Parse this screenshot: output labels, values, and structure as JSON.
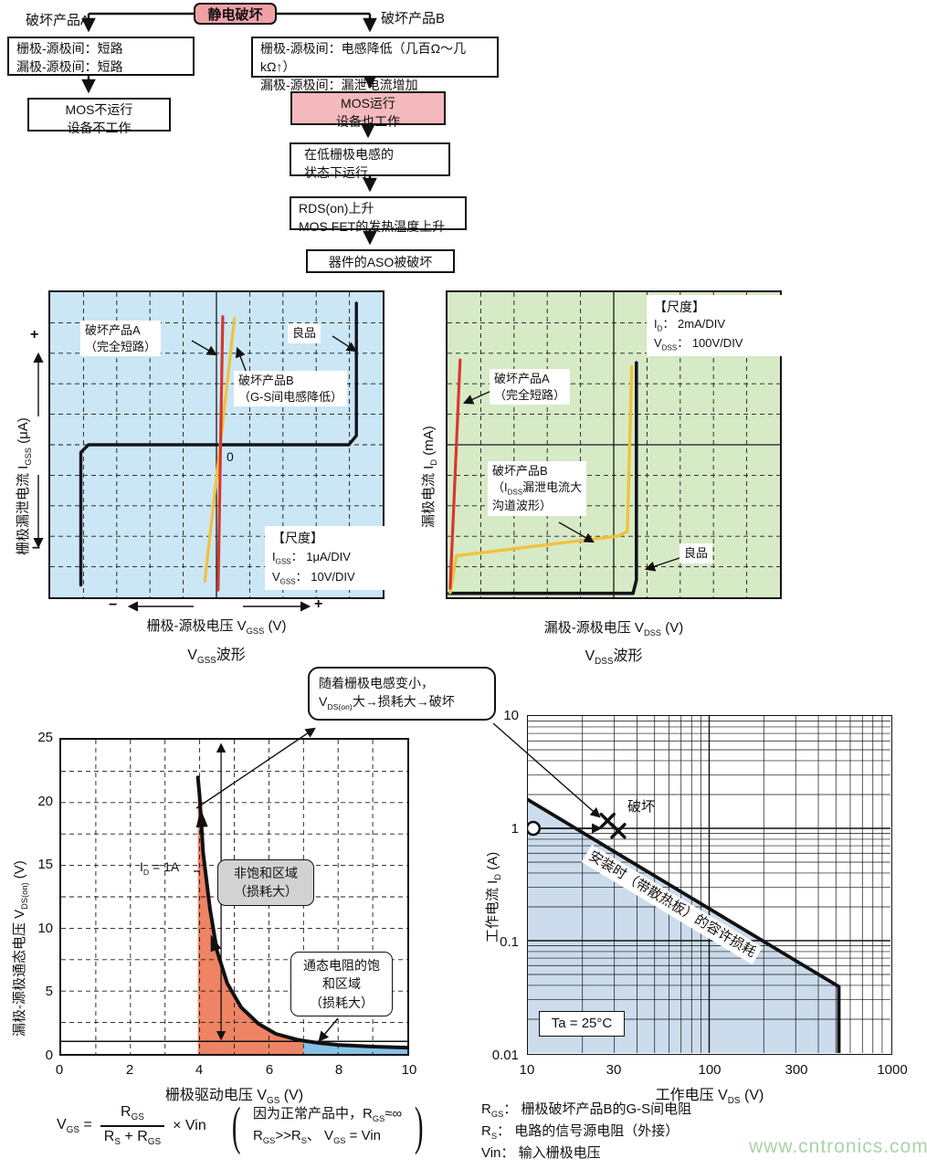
{
  "flowchart": {
    "root": "静电破坏",
    "branch_a_label": "破坏产品A",
    "branch_b_label": "破坏产品B",
    "a1": [
      "栅极-源极间：短路",
      "漏极-源极间：短路"
    ],
    "b1": [
      "栅极-源极间：电感降低（几百Ω～几kΩ↑）",
      "漏极-源极间：漏泄电流增加"
    ],
    "a2": [
      "MOS不运行",
      "设备不工作"
    ],
    "b2": [
      "MOS运行",
      "设备也工作"
    ],
    "b3": [
      "在低栅极电感的",
      "状态下运行"
    ],
    "b4": [
      "RDS(on)上升",
      "MOS FET的发热温度上升"
    ],
    "b5": "器件的ASO被破坏"
  },
  "vgss_chart": {
    "y_label_rich": "栅极漏泄电流  I~GSS~ (μA)",
    "y_plus": "+",
    "y_minus": "−",
    "zero": "0",
    "label_a": [
      "破坏产品A",
      "（完全短路）"
    ],
    "label_b": [
      "破坏产品B",
      "（G-S间电感降低）"
    ],
    "label_good": "良品",
    "scale_title": "【尺度】",
    "scale_l1_rich": "I~GSS~： 1μA/DIV",
    "scale_l2_rich": "V~GSS~： 10V/DIV",
    "x_minus": "−",
    "x_plus": "+",
    "x_label_rich": "栅极-源极电压  V~GSS~ (V)",
    "caption_rich": "V~GSS~波形"
  },
  "vdss_chart": {
    "y_label_rich": "漏极电流  I~D~ (mA)",
    "label_a": [
      "破坏产品A",
      "（完全短路）"
    ],
    "label_b_rich": [
      "破坏产品B",
      "（I~DSS~漏泄电流大",
      "沟道波形）"
    ],
    "label_good": "良品",
    "scale_title": "【尺度】",
    "scale_l1_rich": "I~D~： 2mA/DIV",
    "scale_l2_rich": "V~DSS~： 100V/DIV",
    "x_label_rich": "漏极-源极电压  V~DSS~ (V)",
    "caption_rich": "V~DSS~波形"
  },
  "vdson_chart": {
    "y_label_rich": "漏极-源极通态电压  V~DS(on)~ (V)",
    "x_label_rich": "栅极驱动电压  V~GS~ (V)",
    "y_ticks": [
      "25",
      "20",
      "15",
      "10",
      "5",
      "0"
    ],
    "x_ticks": [
      "0",
      "2",
      "4",
      "6",
      "8",
      "10"
    ],
    "id_label_rich": "I~D~ = 1A",
    "region1": [
      "非饱和区域",
      "（损耗大）"
    ],
    "region2": [
      "通态电阻的饱",
      "和区域",
      "（损耗大）"
    ],
    "callout_l1_rich": "随着栅极电感变小，",
    "callout_l2_rich": "V~DS(on)~大→损耗大→破坏"
  },
  "aso_chart": {
    "y_label_rich": "工作电流  I~D~ (A)",
    "x_label_rich": "工作电压  V~DS~ (V)",
    "y_ticks": [
      "10",
      "1",
      "0.1",
      "0.01"
    ],
    "x_ticks": [
      "10",
      "30",
      "100",
      "300",
      "1000"
    ],
    "destroy_label": "破坏",
    "diag_label": "安装时（带散热板）的容许损耗",
    "ta_label": "Ta = 25°C"
  },
  "formula": {
    "lhs_rich": "V~GS~ =",
    "num_rich": "R~GS~",
    "den_rich": "R~S~ + R~GS~",
    "rhs_rich": "× Vin",
    "paren_open": "(",
    "paren_close": ")",
    "note1_rich": "因为正常产品中，R~GS~≈∞",
    "note2_rich": "R~GS~>>R~S~、 V~GS~ = Vin"
  },
  "legend": {
    "l1_rich": "R~GS~： 栅极破坏产品B的G-S间电阻",
    "l2_rich": "R~S~： 电路的信号源电阻（外接）",
    "l3_rich": "Vin： 输入栅极电压"
  },
  "watermark": "www.cntronics.com",
  "colors": {
    "chart1_bg": "#cbe6f5",
    "chart2_bg": "#d6eac6",
    "trace_red": "#d6392e",
    "trace_yellow": "#f0c23c",
    "trace_black": "#14141e",
    "orange_fill": "#ee8464",
    "blue_fill": "#85c2e6",
    "aso_fill": "#ccdcec",
    "pink_dark": "#efa1a6",
    "pink_light": "#f4b9bc",
    "gray_box": "#d2d2d2",
    "watermark_green": "#a9d3a9"
  },
  "chart_data": [
    {
      "id": "vgss",
      "type": "line",
      "title": "VGSS波形",
      "xlabel": "栅极-源极电压 VGSS (V)",
      "ylabel": "栅极漏泄电流 IGSS (μA)",
      "x_scale": "10V/DIV",
      "y_scale": "1μA/DIV",
      "x_range_div": [
        -5,
        5
      ],
      "y_range_div": [
        -5,
        5
      ],
      "grid": "dashed 10x10 divisions",
      "series": [
        {
          "name": "良品",
          "color": "#14141e",
          "points_div": [
            [
              -4.08,
              -4.6
            ],
            [
              -4.08,
              -0.25
            ],
            [
              -3.85,
              0
            ],
            [
              3.98,
              0
            ],
            [
              4.21,
              0.3
            ],
            [
              4.21,
              4.64
            ]
          ]
        },
        {
          "name": "破坏产品A（完全短路）",
          "color": "#d6392e",
          "points_div": [
            [
              0.05,
              -4.76
            ],
            [
              0.19,
              4.2
            ]
          ]
        },
        {
          "name": "破坏产品B（G-S间电感降低）",
          "color": "#f0c23c",
          "points_div": [
            [
              -0.35,
              -4.47
            ],
            [
              0.54,
              4.14
            ]
          ]
        }
      ]
    },
    {
      "id": "vdss",
      "type": "line",
      "title": "VDSS波形",
      "xlabel": "漏极-源极电压 VDSS (V)",
      "ylabel": "漏极电流 ID (mA)",
      "x_scale": "100V/DIV",
      "y_scale": "2mA/DIV",
      "x_range_div": [
        0,
        10
      ],
      "y_range_div": [
        0,
        10
      ],
      "grid": "dashed 10x10 divisions",
      "series": [
        {
          "name": "良品",
          "color": "#14141e",
          "points_div": [
            [
              0.05,
              0.07
            ],
            [
              5.58,
              0.07
            ],
            [
              5.68,
              0.5
            ],
            [
              5.68,
              7.63
            ]
          ]
        },
        {
          "name": "破坏产品A（完全短路）",
          "color": "#d6392e",
          "points_div": [
            [
              0.08,
              0.24
            ],
            [
              0.38,
              7.72
            ]
          ]
        },
        {
          "name": "破坏产品B（IDSS漏泄电流大，沟道波形）",
          "color": "#f0c23c",
          "points_div": [
            [
              0.08,
              0.1
            ],
            [
              0.27,
              1.3
            ],
            [
              5.14,
              1.95
            ],
            [
              5.41,
              2.1
            ],
            [
              5.54,
              7.5
            ]
          ]
        }
      ]
    },
    {
      "id": "vdson",
      "type": "line",
      "xlabel": "栅极驱动电压 VGS (V)",
      "ylabel": "漏极-源极通态电压 VDS(on) (V)",
      "xlim": [
        0,
        10
      ],
      "ylim": [
        0,
        25
      ],
      "x_ticks": [
        0,
        2,
        4,
        6,
        8,
        10
      ],
      "y_ticks": [
        0,
        5,
        10,
        15,
        20,
        25
      ],
      "curve_name": "ID = 1A",
      "curve": [
        [
          3.95,
          22
        ],
        [
          4.0,
          20.5
        ],
        [
          4.1,
          16
        ],
        [
          4.3,
          11.5
        ],
        [
          4.5,
          8.2
        ],
        [
          4.8,
          5.6
        ],
        [
          5.2,
          3.7
        ],
        [
          5.7,
          2.4
        ],
        [
          6.2,
          1.6
        ],
        [
          6.8,
          1.15
        ],
        [
          7.0,
          1.05
        ],
        [
          7.5,
          0.85
        ],
        [
          8,
          0.72
        ],
        [
          9,
          0.58
        ],
        [
          10,
          0.5
        ]
      ],
      "hline_y": 1,
      "varrow_x": 4.62,
      "varrow_y": [
        1,
        24.6
      ],
      "regions": [
        {
          "name": "非饱和区域（损耗大）",
          "x": [
            3.95,
            7
          ],
          "color": "#ee8464"
        },
        {
          "name": "通态电阻的饱和区域（损耗大）",
          "x": [
            7,
            10
          ],
          "color": "#85c2e6"
        }
      ]
    },
    {
      "id": "aso",
      "type": "line",
      "log_x": true,
      "log_y": true,
      "xlabel": "工作电压 VDS (V)",
      "ylabel": "工作电流 ID (A)",
      "xlim": [
        10,
        1000
      ],
      "ylim": [
        0.01,
        10
      ],
      "x_ticks": [
        10,
        30,
        100,
        300,
        1000
      ],
      "y_ticks": [
        10,
        1,
        0.1,
        0.01
      ],
      "boundary": [
        [
          10,
          1.8
        ],
        [
          519,
          0.039
        ],
        [
          519,
          0.01
        ]
      ],
      "boundary_label": "安装时（带散热板）的容许损耗",
      "operating_point": [
        10.7,
        1
      ],
      "arrow_to": [
        25,
        1
      ],
      "failure_points": [
        [
          27.5,
          1.17
        ],
        [
          31.5,
          0.95
        ]
      ],
      "failure_label": "破坏",
      "condition": "Ta = 25°C"
    }
  ]
}
